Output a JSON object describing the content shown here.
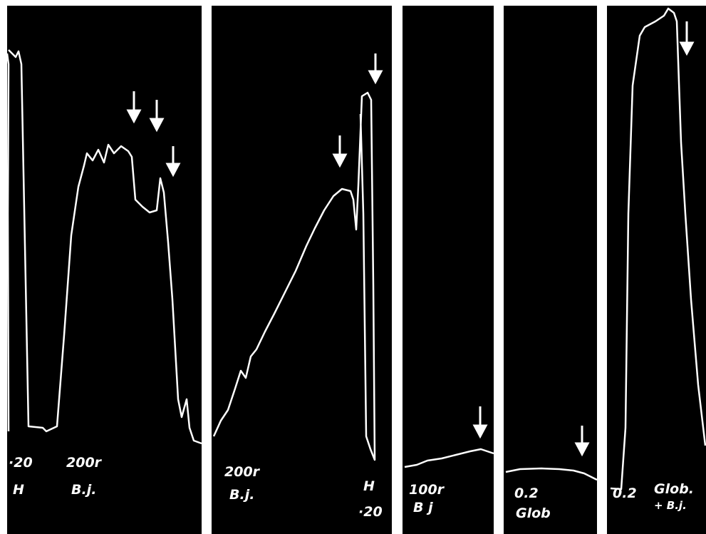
{
  "panels": [
    {
      "labels": [
        "·20",
        "H",
        "200r",
        "B.j."
      ]
    },
    {
      "labels": [
        "200r",
        "B.j.",
        "H",
        "·20"
      ]
    },
    {
      "labels": [
        "100r",
        "B j"
      ]
    },
    {
      "labels": [
        "0.2",
        "Glob"
      ]
    },
    {
      "labels": [
        "0.2",
        "Glob.",
        "+ B.j."
      ]
    }
  ]
}
